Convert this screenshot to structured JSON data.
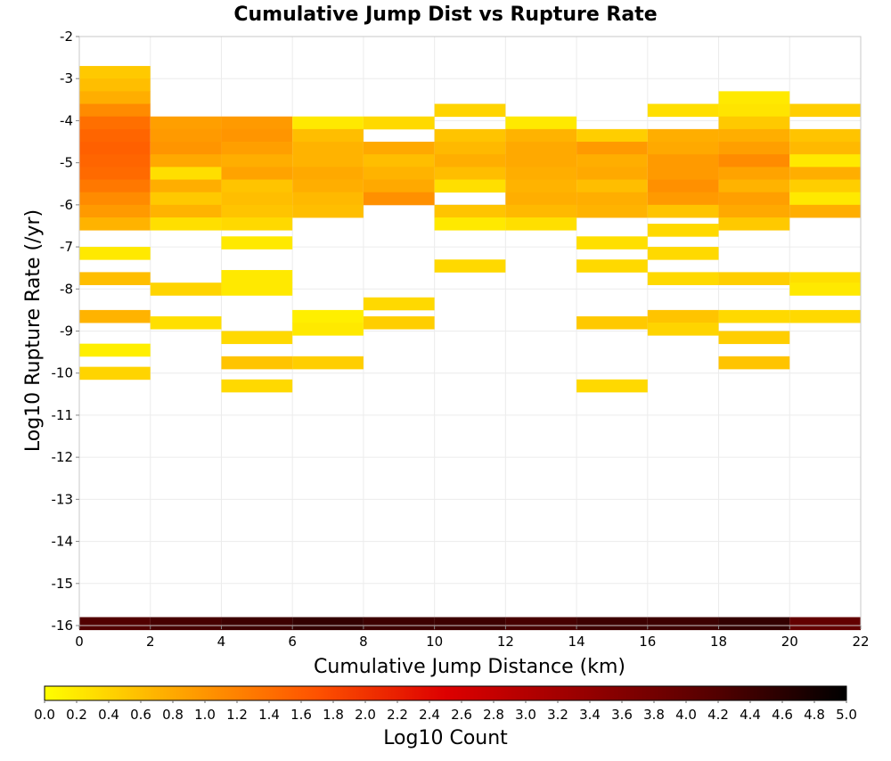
{
  "chart_data": {
    "type": "heatmap",
    "title": "Cumulative Jump Dist vs Rupture Rate",
    "xlabel": "Cumulative Jump Distance (km)",
    "ylabel": "Log10 Rupture Rate (/yr)",
    "xlim": [
      0,
      22
    ],
    "ylim": [
      -16,
      -2
    ],
    "x_ticks": [
      "0",
      "2",
      "4",
      "6",
      "8",
      "10",
      "12",
      "14",
      "16",
      "18",
      "20",
      "22"
    ],
    "y_ticks": [
      "-2",
      "-3",
      "-4",
      "-5",
      "-6",
      "-7",
      "-8",
      "-9",
      "-10",
      "-11",
      "-12",
      "-13",
      "-14",
      "-15",
      "-16"
    ],
    "grid": true,
    "x_bin_width": 2,
    "y_bin_height": 0.3,
    "colorbar": {
      "label": "Log10 Count",
      "range": [
        0,
        5
      ],
      "ticks": [
        "0.0",
        "0.2",
        "0.4",
        "0.6",
        "0.8",
        "1.0",
        "1.2",
        "1.4",
        "1.6",
        "1.8",
        "2.0",
        "2.2",
        "2.4",
        "2.6",
        "2.8",
        "3.0",
        "3.2",
        "3.4",
        "3.6",
        "3.8",
        "4.0",
        "4.2",
        "4.4",
        "4.6",
        "4.8",
        "5.0"
      ],
      "placement": "bottom",
      "colors": [
        "#ffff00",
        "#ffa500",
        "#ff5500",
        "#dd0000",
        "#990000",
        "#550000",
        "#000000"
      ]
    },
    "columns": [
      {
        "x_bin": [
          0,
          2
        ],
        "cells": [
          {
            "y": -2.85,
            "value": 0.5
          },
          {
            "y": -3.15,
            "value": 0.6
          },
          {
            "y": -3.45,
            "value": 0.75
          },
          {
            "y": -3.75,
            "value": 1.1
          },
          {
            "y": -4.05,
            "value": 1.4
          },
          {
            "y": -4.35,
            "value": 1.5
          },
          {
            "y": -4.65,
            "value": 1.55
          },
          {
            "y": -4.95,
            "value": 1.5
          },
          {
            "y": -5.25,
            "value": 1.45
          },
          {
            "y": -5.55,
            "value": 1.3
          },
          {
            "y": -5.85,
            "value": 1.1
          },
          {
            "y": -6.15,
            "value": 0.95
          },
          {
            "y": -6.45,
            "value": 0.7
          },
          {
            "y": -7.15,
            "value": 0.2
          },
          {
            "y": -7.75,
            "value": 0.6
          },
          {
            "y": -8.65,
            "value": 0.7
          },
          {
            "y": -9.45,
            "value": 0.15
          },
          {
            "y": -10.0,
            "value": 0.4
          },
          {
            "y": -15.95,
            "value": 4.2
          }
        ]
      },
      {
        "x_bin": [
          2,
          4
        ],
        "cells": [
          {
            "y": -4.05,
            "value": 0.9
          },
          {
            "y": -4.35,
            "value": 0.95
          },
          {
            "y": -4.65,
            "value": 1.0
          },
          {
            "y": -4.95,
            "value": 0.8
          },
          {
            "y": -5.25,
            "value": 0.3
          },
          {
            "y": -5.55,
            "value": 0.75
          },
          {
            "y": -5.85,
            "value": 0.5
          },
          {
            "y": -6.15,
            "value": 0.7
          },
          {
            "y": -6.45,
            "value": 0.3
          },
          {
            "y": -8.0,
            "value": 0.4
          },
          {
            "y": -8.8,
            "value": 0.3
          },
          {
            "y": -15.95,
            "value": 4.3
          }
        ]
      },
      {
        "x_bin": [
          4,
          6
        ],
        "cells": [
          {
            "y": -4.05,
            "value": 0.95
          },
          {
            "y": -4.35,
            "value": 1.0
          },
          {
            "y": -4.65,
            "value": 0.9
          },
          {
            "y": -4.95,
            "value": 0.75
          },
          {
            "y": -5.25,
            "value": 0.85
          },
          {
            "y": -5.55,
            "value": 0.55
          },
          {
            "y": -5.85,
            "value": 0.6
          },
          {
            "y": -6.15,
            "value": 0.55
          },
          {
            "y": -6.45,
            "value": 0.35
          },
          {
            "y": -6.9,
            "value": 0.2
          },
          {
            "y": -7.7,
            "value": 0.2
          },
          {
            "y": -8.0,
            "value": 0.2
          },
          {
            "y": -9.15,
            "value": 0.35
          },
          {
            "y": -9.75,
            "value": 0.55
          },
          {
            "y": -10.3,
            "value": 0.35
          },
          {
            "y": -15.95,
            "value": 4.4
          }
        ]
      },
      {
        "x_bin": [
          6,
          8
        ],
        "cells": [
          {
            "y": -4.05,
            "value": 0.2
          },
          {
            "y": -4.35,
            "value": 0.6
          },
          {
            "y": -4.65,
            "value": 0.7
          },
          {
            "y": -4.95,
            "value": 0.7
          },
          {
            "y": -5.25,
            "value": 0.8
          },
          {
            "y": -5.55,
            "value": 0.75
          },
          {
            "y": -5.85,
            "value": 0.65
          },
          {
            "y": -6.15,
            "value": 0.6
          },
          {
            "y": -8.65,
            "value": 0.15
          },
          {
            "y": -8.95,
            "value": 0.2
          },
          {
            "y": -9.75,
            "value": 0.45
          },
          {
            "y": -15.95,
            "value": 4.5
          }
        ]
      },
      {
        "x_bin": [
          8,
          10
        ],
        "cells": [
          {
            "y": -4.05,
            "value": 0.35
          },
          {
            "y": -4.65,
            "value": 0.8
          },
          {
            "y": -4.95,
            "value": 0.6
          },
          {
            "y": -5.25,
            "value": 0.7
          },
          {
            "y": -5.55,
            "value": 0.8
          },
          {
            "y": -5.85,
            "value": 1.05
          },
          {
            "y": -8.35,
            "value": 0.35
          },
          {
            "y": -8.8,
            "value": 0.45
          },
          {
            "y": -15.95,
            "value": 4.4
          }
        ]
      },
      {
        "x_bin": [
          10,
          12
        ],
        "cells": [
          {
            "y": -3.75,
            "value": 0.4
          },
          {
            "y": -4.35,
            "value": 0.55
          },
          {
            "y": -4.65,
            "value": 0.65
          },
          {
            "y": -4.95,
            "value": 0.75
          },
          {
            "y": -5.25,
            "value": 0.6
          },
          {
            "y": -5.55,
            "value": 0.3
          },
          {
            "y": -6.15,
            "value": 0.55
          },
          {
            "y": -6.45,
            "value": 0.2
          },
          {
            "y": -7.45,
            "value": 0.35
          },
          {
            "y": -15.95,
            "value": 4.4
          }
        ]
      },
      {
        "x_bin": [
          12,
          14
        ],
        "cells": [
          {
            "y": -4.05,
            "value": 0.2
          },
          {
            "y": -4.35,
            "value": 0.7
          },
          {
            "y": -4.65,
            "value": 0.8
          },
          {
            "y": -4.95,
            "value": 0.8
          },
          {
            "y": -5.25,
            "value": 0.75
          },
          {
            "y": -5.55,
            "value": 0.7
          },
          {
            "y": -5.85,
            "value": 0.75
          },
          {
            "y": -6.15,
            "value": 0.65
          },
          {
            "y": -6.45,
            "value": 0.3
          },
          {
            "y": -15.95,
            "value": 4.3
          }
        ]
      },
      {
        "x_bin": [
          14,
          16
        ],
        "cells": [
          {
            "y": -4.35,
            "value": 0.45
          },
          {
            "y": -4.65,
            "value": 0.95
          },
          {
            "y": -4.95,
            "value": 0.75
          },
          {
            "y": -5.25,
            "value": 0.8
          },
          {
            "y": -5.55,
            "value": 0.6
          },
          {
            "y": -5.85,
            "value": 0.75
          },
          {
            "y": -6.15,
            "value": 0.7
          },
          {
            "y": -6.9,
            "value": 0.3
          },
          {
            "y": -7.45,
            "value": 0.35
          },
          {
            "y": -8.8,
            "value": 0.5
          },
          {
            "y": -10.3,
            "value": 0.35
          },
          {
            "y": -15.95,
            "value": 4.4
          }
        ]
      },
      {
        "x_bin": [
          16,
          18
        ],
        "cells": [
          {
            "y": -3.75,
            "value": 0.3
          },
          {
            "y": -4.35,
            "value": 0.75
          },
          {
            "y": -4.65,
            "value": 0.8
          },
          {
            "y": -4.95,
            "value": 0.95
          },
          {
            "y": -5.25,
            "value": 0.95
          },
          {
            "y": -5.55,
            "value": 1.05
          },
          {
            "y": -5.85,
            "value": 0.95
          },
          {
            "y": -6.15,
            "value": 0.55
          },
          {
            "y": -6.6,
            "value": 0.35
          },
          {
            "y": -7.15,
            "value": 0.35
          },
          {
            "y": -7.75,
            "value": 0.35
          },
          {
            "y": -8.65,
            "value": 0.55
          },
          {
            "y": -8.95,
            "value": 0.4
          },
          {
            "y": -15.95,
            "value": 4.4
          }
        ]
      },
      {
        "x_bin": [
          18,
          20
        ],
        "cells": [
          {
            "y": -3.45,
            "value": 0.2
          },
          {
            "y": -3.75,
            "value": 0.25
          },
          {
            "y": -4.05,
            "value": 0.5
          },
          {
            "y": -4.35,
            "value": 0.75
          },
          {
            "y": -4.65,
            "value": 0.9
          },
          {
            "y": -4.95,
            "value": 1.1
          },
          {
            "y": -5.25,
            "value": 0.85
          },
          {
            "y": -5.55,
            "value": 0.7
          },
          {
            "y": -5.85,
            "value": 0.9
          },
          {
            "y": -6.15,
            "value": 0.8
          },
          {
            "y": -6.45,
            "value": 0.5
          },
          {
            "y": -7.75,
            "value": 0.45
          },
          {
            "y": -8.65,
            "value": 0.35
          },
          {
            "y": -9.15,
            "value": 0.45
          },
          {
            "y": -9.75,
            "value": 0.55
          },
          {
            "y": -15.95,
            "value": 4.5
          }
        ]
      },
      {
        "x_bin": [
          20,
          22
        ],
        "cells": [
          {
            "y": -3.75,
            "value": 0.45
          },
          {
            "y": -4.35,
            "value": 0.55
          },
          {
            "y": -4.65,
            "value": 0.65
          },
          {
            "y": -4.95,
            "value": 0.2
          },
          {
            "y": -5.25,
            "value": 0.75
          },
          {
            "y": -5.55,
            "value": 0.45
          },
          {
            "y": -5.85,
            "value": 0.2
          },
          {
            "y": -6.15,
            "value": 0.75
          },
          {
            "y": -7.75,
            "value": 0.3
          },
          {
            "y": -8.0,
            "value": 0.2
          },
          {
            "y": -8.65,
            "value": 0.35
          },
          {
            "y": -15.95,
            "value": 4.0
          }
        ]
      }
    ]
  }
}
